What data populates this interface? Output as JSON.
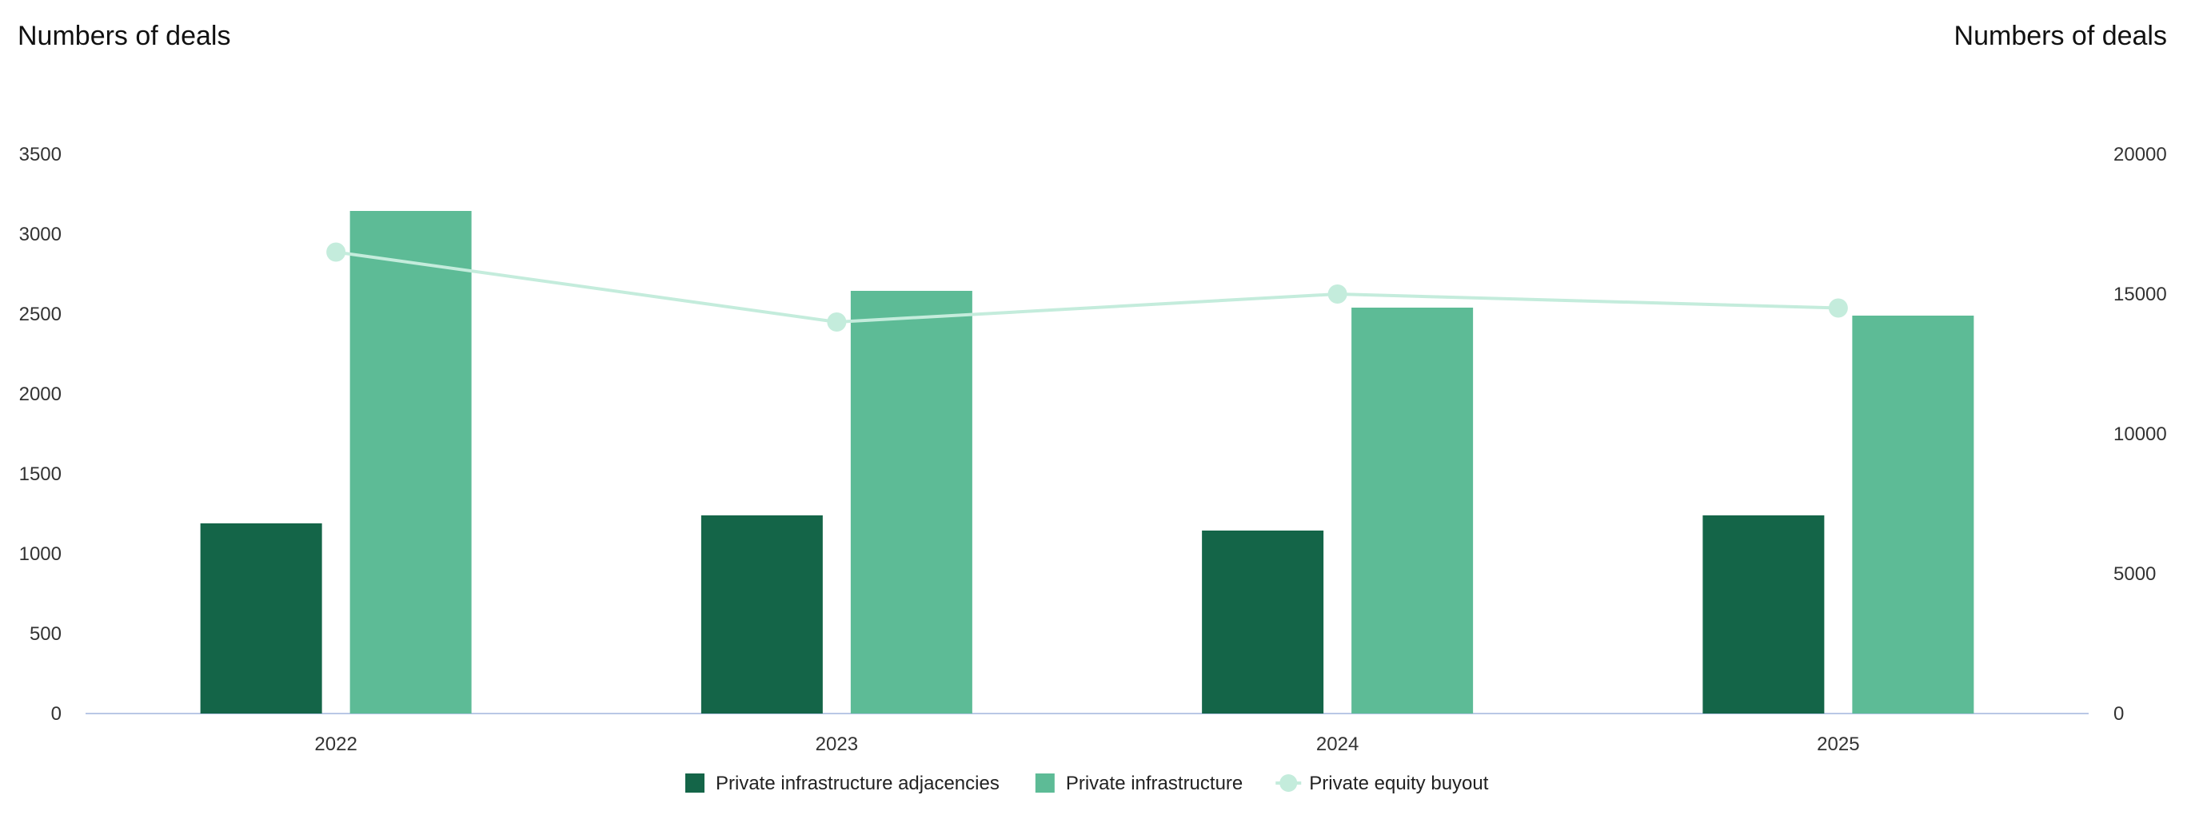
{
  "chart_data": {
    "type": "bar",
    "categories": [
      "2022",
      "2023",
      "2024",
      "2025"
    ],
    "left_axis": {
      "title": "Numbers of deals",
      "ylim": [
        0,
        3500
      ],
      "ticks": [
        0,
        500,
        1000,
        1500,
        2000,
        2500,
        3000,
        3500
      ]
    },
    "right_axis": {
      "title": "Numbers of deals",
      "ylim": [
        0,
        20000
      ],
      "ticks": [
        0,
        5000,
        10000,
        15000,
        20000
      ]
    },
    "series": [
      {
        "name": "Private infrastructure adjacencies",
        "type": "bar",
        "axis": "left",
        "color": "#146548",
        "values": [
          1190,
          1240,
          1145,
          1240
        ]
      },
      {
        "name": "Private infrastructure",
        "type": "bar",
        "axis": "left",
        "color": "#5dbb96",
        "values": [
          3145,
          2645,
          2540,
          2490
        ]
      },
      {
        "name": "Private equity buyout",
        "type": "line",
        "axis": "right",
        "color": "#c4ecdc",
        "values": [
          16500,
          14000,
          15000,
          14500
        ]
      }
    ],
    "grid": false,
    "legend_position": "bottom-center"
  }
}
